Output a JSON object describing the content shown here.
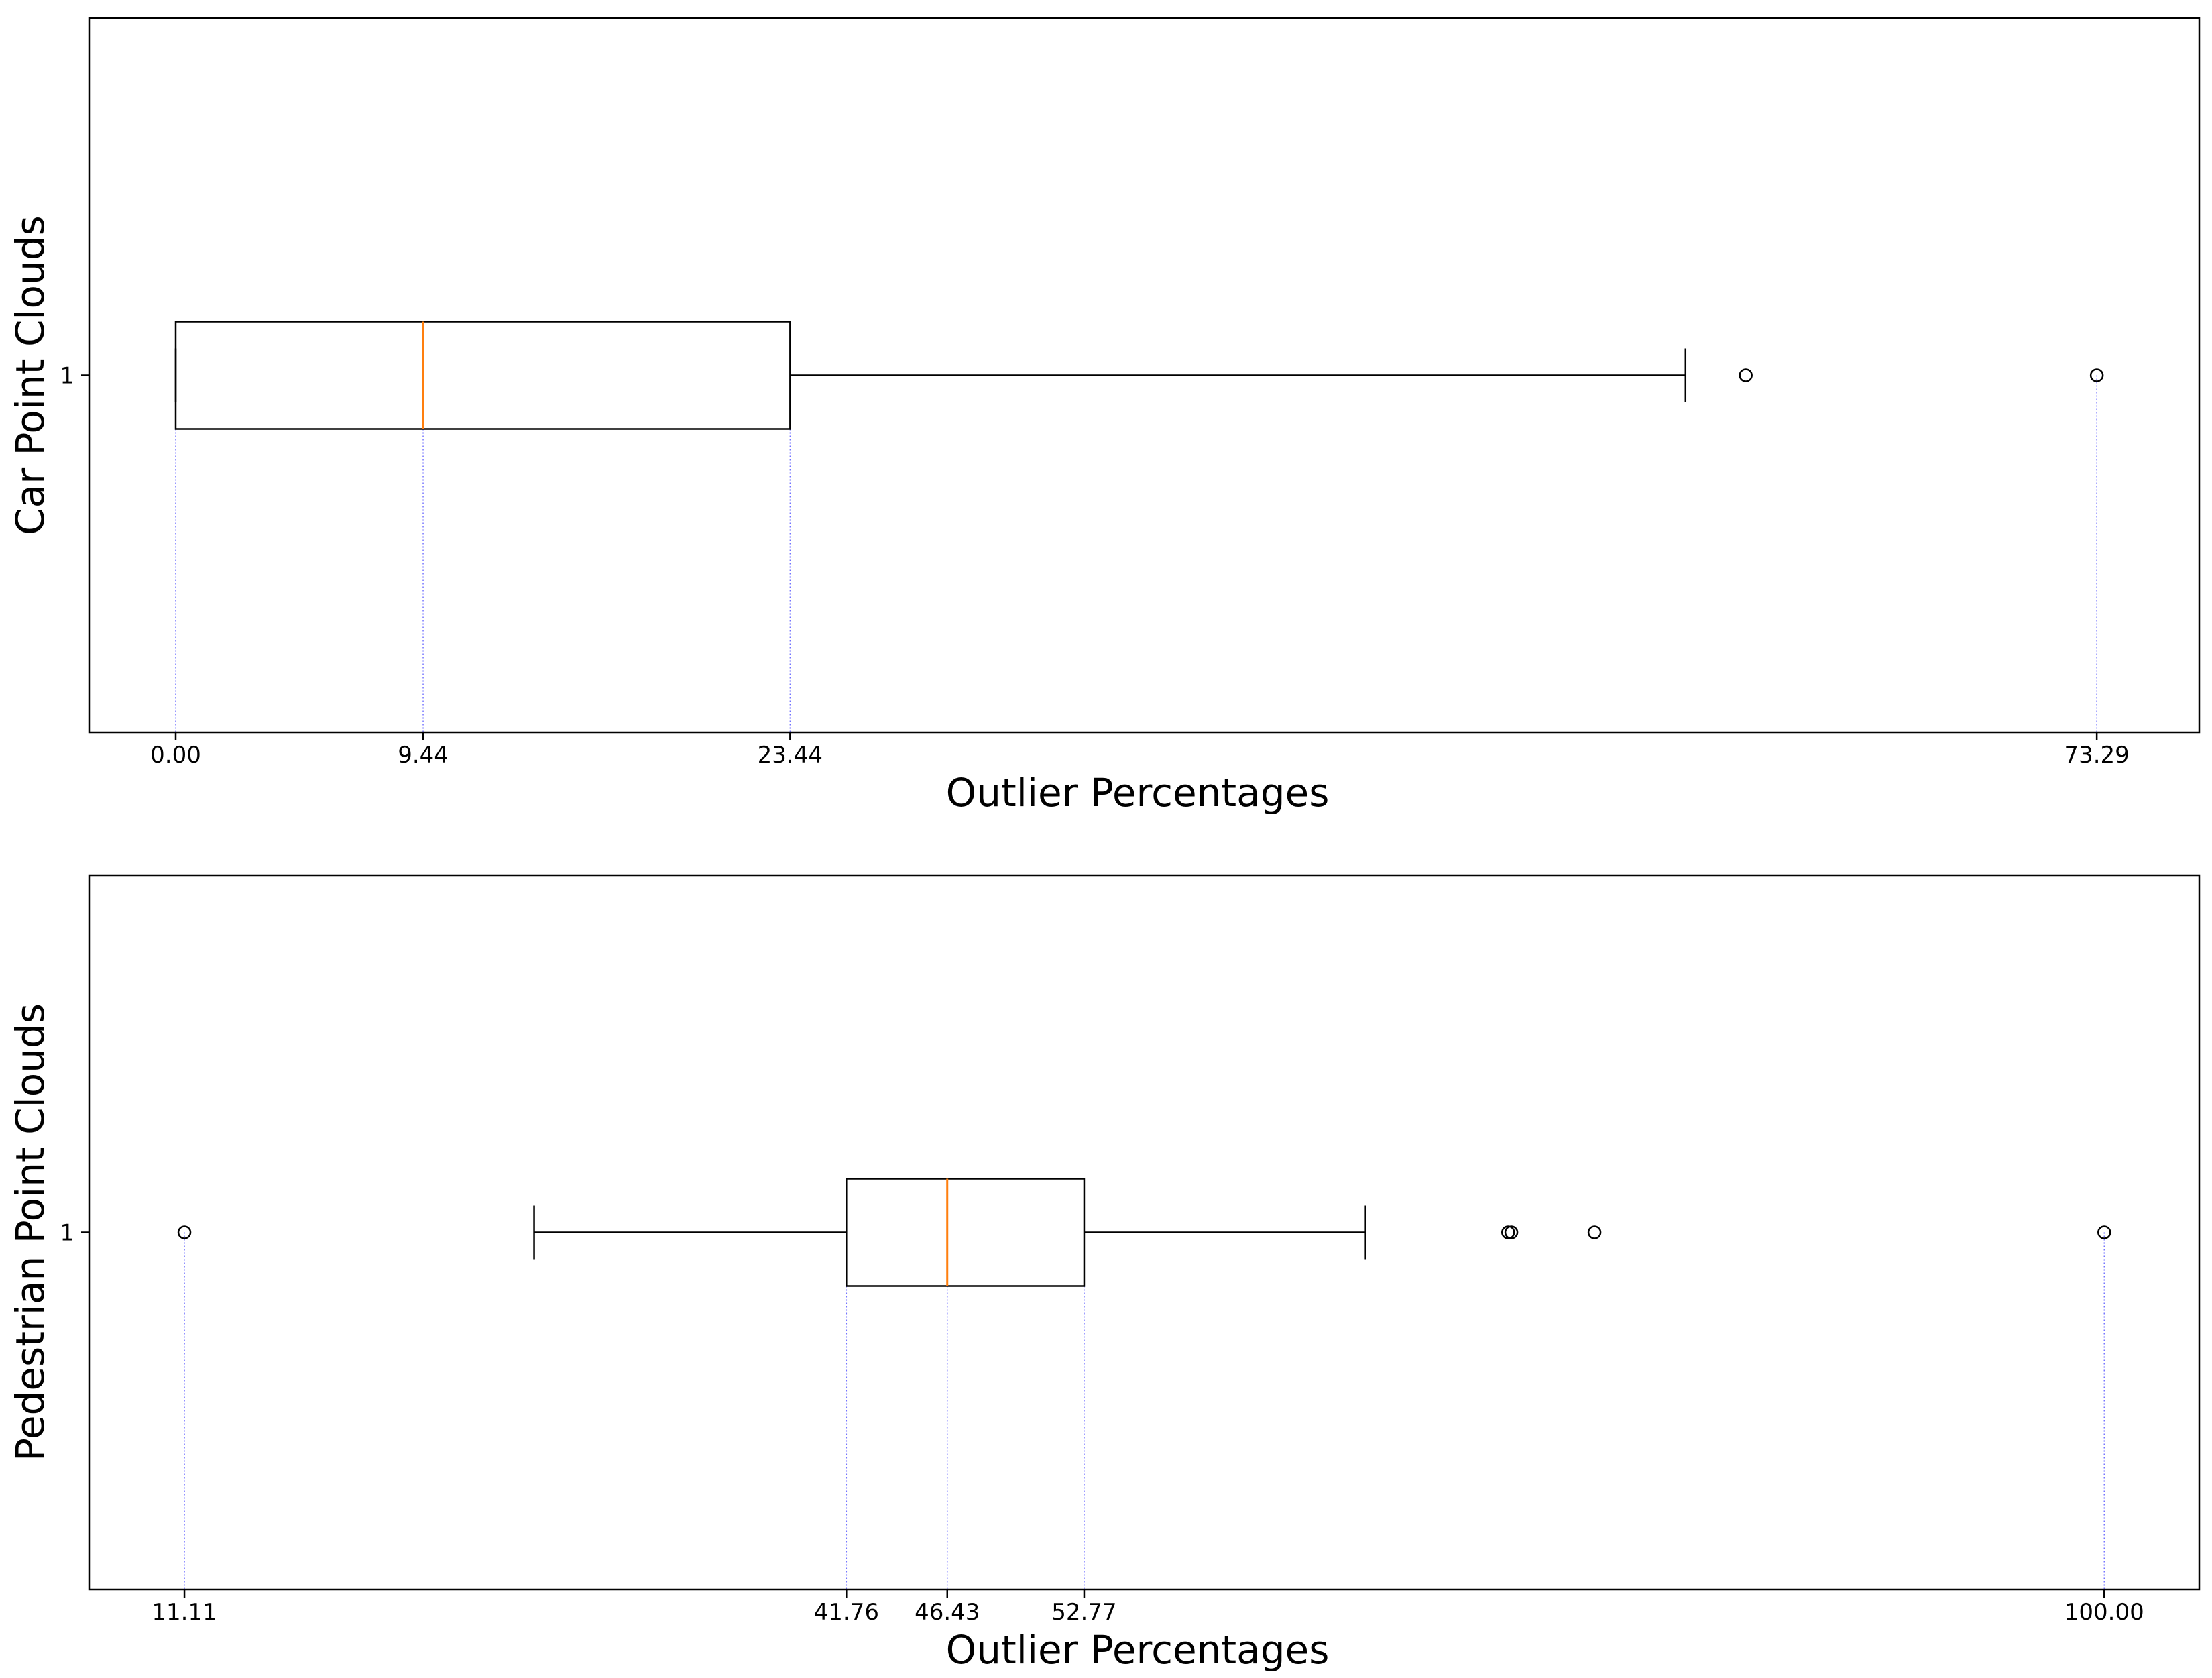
{
  "chart_data": [
    {
      "type": "boxplot",
      "orientation": "horizontal",
      "xlabel": "Outlier Percentages",
      "ylabel": "Car Point Clouds",
      "y_tick_labels": [
        "1"
      ],
      "xlim": [
        -3.3,
        77.2
      ],
      "x_ticks": [
        0.0,
        9.44,
        23.44,
        73.29
      ],
      "x_tick_labels": [
        "0.00",
        "9.44",
        "23.44",
        "73.29"
      ],
      "reference_lines": [
        0.0,
        9.44,
        23.44,
        73.29
      ],
      "box": {
        "q1": 0.0,
        "median": 9.44,
        "q3": 23.44,
        "whisker_low": 0.0,
        "whisker_high": 57.6
      },
      "outliers": [
        59.9,
        73.29
      ],
      "colors": {
        "box": "#000000",
        "median": "#ff7f0e",
        "reference": "#0000ff"
      },
      "grid": false
    },
    {
      "type": "boxplot",
      "orientation": "horizontal",
      "xlabel": "Outlier Percentages",
      "ylabel": "Pedestrian Point Clouds",
      "y_tick_labels": [
        "1"
      ],
      "xlim": [
        6.7,
        104.4
      ],
      "x_ticks": [
        11.11,
        41.76,
        46.43,
        52.77,
        100.0
      ],
      "x_tick_labels": [
        "11.11",
        "41.76",
        "46.43",
        "52.77",
        "100.00"
      ],
      "reference_lines": [
        11.11,
        41.76,
        46.43,
        52.77,
        100.0
      ],
      "box": {
        "q1": 41.76,
        "median": 46.43,
        "q3": 52.77,
        "whisker_low": 27.3,
        "whisker_high": 65.8
      },
      "outliers": [
        11.11,
        72.4,
        72.55,
        76.4,
        100.0
      ],
      "colors": {
        "box": "#000000",
        "median": "#ff7f0e",
        "reference": "#0000ff"
      },
      "grid": false
    }
  ]
}
